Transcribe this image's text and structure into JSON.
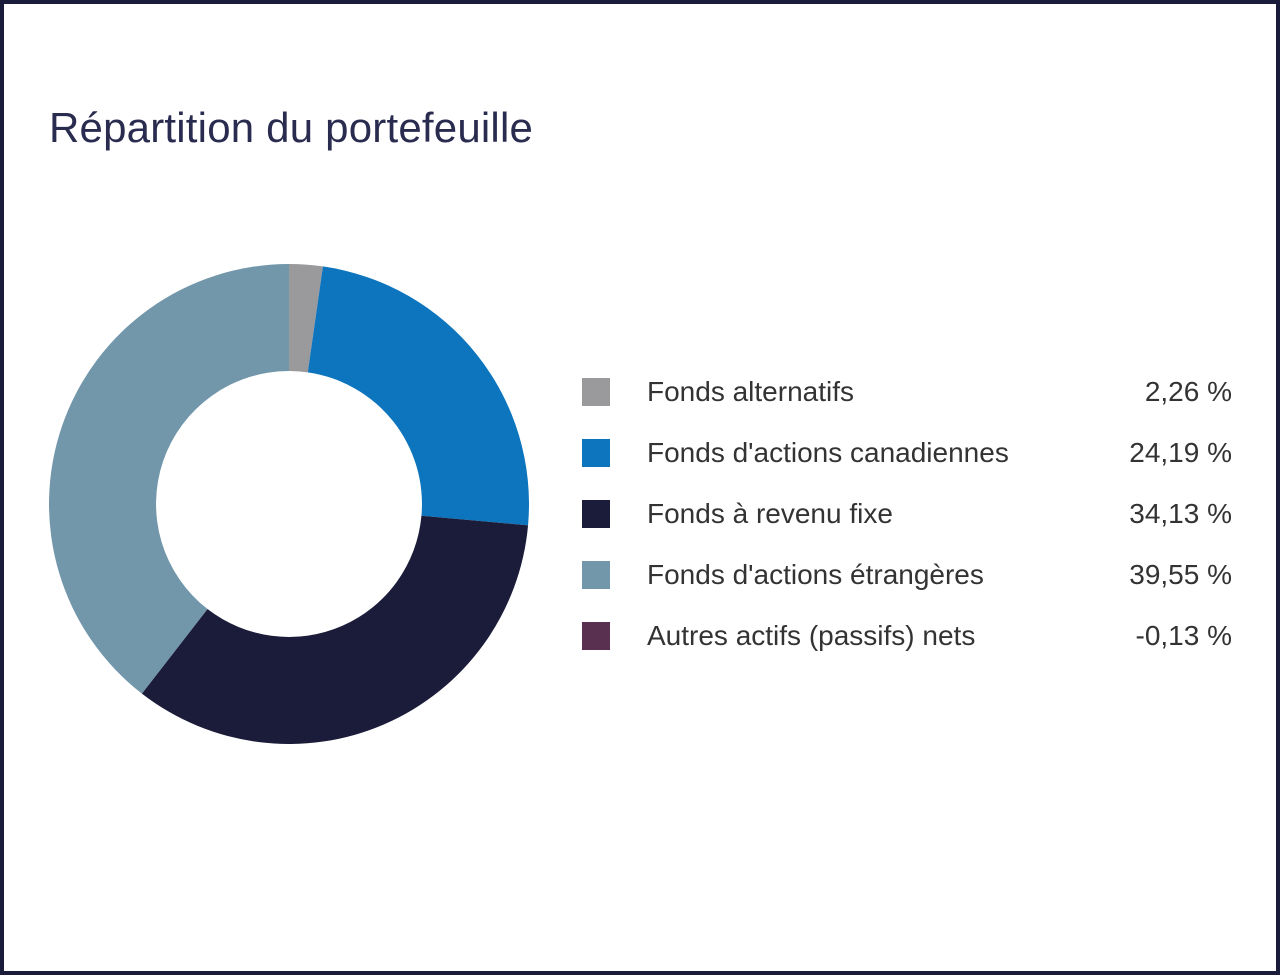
{
  "header": {
    "title": "Répartition du portefeuille"
  },
  "colors": {
    "background": "#FFFFFF",
    "page_border": "#1B1B3A",
    "title_text": "#292B4F",
    "legend_text": "#333333",
    "donut_hole": "#FFFFFF"
  },
  "chart_data": {
    "type": "pie",
    "subtype": "donut",
    "title": "Répartition du portefeuille",
    "categories": [
      "Fonds alternatifs",
      "Fonds d'actions canadiennes",
      "Fonds à revenu fixe",
      "Fonds d'actions étrangères",
      "Autres actifs (passifs) nets"
    ],
    "values": [
      2.26,
      24.19,
      34.13,
      39.55,
      -0.13
    ],
    "display_values": [
      "2,26 %",
      "24,19 %",
      "34,13 %",
      "39,55 %",
      "-0,13 %"
    ],
    "colors": [
      "#9A9A9C",
      "#0D75BD",
      "#1B1B3A",
      "#7296AA",
      "#59304F"
    ],
    "start_angle": "top",
    "direction": "clockwise",
    "inner_radius_ratio": 0.554,
    "legend_position": "right",
    "value_suffix": "%",
    "decimal_separator": ","
  }
}
